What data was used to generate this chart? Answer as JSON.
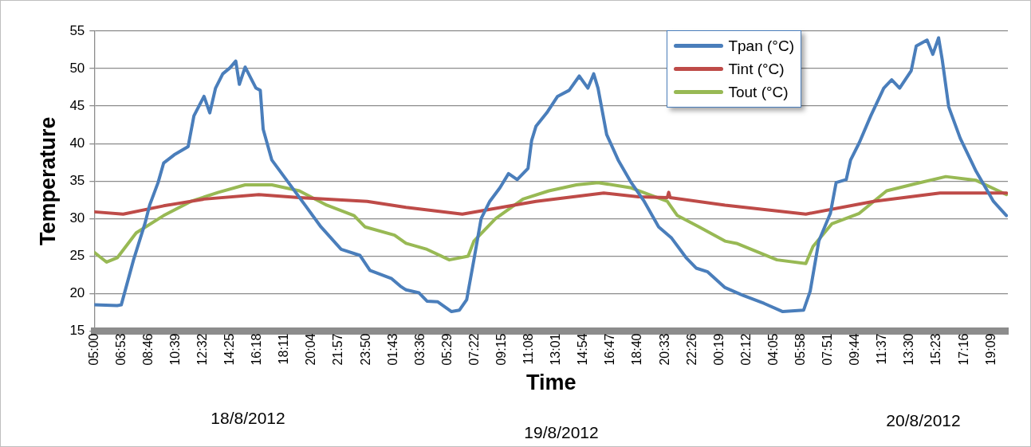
{
  "chart_data": {
    "type": "line",
    "xlabel": "Time",
    "ylabel": "Temperature",
    "annotations": [
      "18/8/2012",
      "19/8/2012",
      "20/8/2012"
    ],
    "xlim": [
      "2012-08-18T05:00",
      "2012-08-20T20:18"
    ],
    "xticks": [
      {
        "value": "2012-08-18T05:00",
        "label": "05:00"
      },
      {
        "value": "2012-08-18T06:53",
        "label": "06:53"
      },
      {
        "value": "2012-08-18T08:46",
        "label": "08:46"
      },
      {
        "value": "2012-08-18T10:39",
        "label": "10:39"
      },
      {
        "value": "2012-08-18T12:32",
        "label": "12:32"
      },
      {
        "value": "2012-08-18T14:25",
        "label": "14:25"
      },
      {
        "value": "2012-08-18T16:18",
        "label": "16:18"
      },
      {
        "value": "2012-08-18T18:11",
        "label": "18:11"
      },
      {
        "value": "2012-08-18T20:04",
        "label": "20:04"
      },
      {
        "value": "2012-08-18T21:57",
        "label": "21:57"
      },
      {
        "value": "2012-08-18T23:50",
        "label": "23:50"
      },
      {
        "value": "2012-08-19T01:43",
        "label": "01:43"
      },
      {
        "value": "2012-08-19T03:36",
        "label": "03:36"
      },
      {
        "value": "2012-08-19T05:29",
        "label": "05:29"
      },
      {
        "value": "2012-08-19T07:22",
        "label": "07:22"
      },
      {
        "value": "2012-08-19T09:15",
        "label": "09:15"
      },
      {
        "value": "2012-08-19T11:08",
        "label": "11:08"
      },
      {
        "value": "2012-08-19T13:01",
        "label": "13:01"
      },
      {
        "value": "2012-08-19T14:54",
        "label": "14:54"
      },
      {
        "value": "2012-08-19T16:47",
        "label": "16:47"
      },
      {
        "value": "2012-08-19T18:40",
        "label": "18:40"
      },
      {
        "value": "2012-08-19T20:33",
        "label": "20:33"
      },
      {
        "value": "2012-08-19T22:26",
        "label": "22:26"
      },
      {
        "value": "2012-08-20T00:19",
        "label": "00:19"
      },
      {
        "value": "2012-08-20T02:12",
        "label": "02:12"
      },
      {
        "value": "2012-08-20T04:05",
        "label": "04:05"
      },
      {
        "value": "2012-08-20T05:58",
        "label": "05:58"
      },
      {
        "value": "2012-08-20T07:51",
        "label": "07:51"
      },
      {
        "value": "2012-08-20T09:44",
        "label": "09:44"
      },
      {
        "value": "2012-08-20T11:37",
        "label": "11:37"
      },
      {
        "value": "2012-08-20T13:30",
        "label": "13:30"
      },
      {
        "value": "2012-08-20T15:23",
        "label": "15:23"
      },
      {
        "value": "2012-08-20T17:16",
        "label": "17:16"
      },
      {
        "value": "2012-08-20T19:09",
        "label": "19:09"
      }
    ],
    "ylim": [
      15,
      55
    ],
    "yticks": [
      15,
      20,
      25,
      30,
      35,
      40,
      45,
      50,
      55
    ],
    "grid": "y",
    "legend": "top right",
    "series": [
      {
        "name": "Tpan (°C)",
        "color": "#4a7ebb",
        "x": [
          "2012-08-18T05:00",
          "2012-08-18T06:35",
          "2012-08-18T06:52",
          "2012-08-18T07:43",
          "2012-08-18T08:30",
          "2012-08-18T08:50",
          "2012-08-18T09:25",
          "2012-08-18T09:48",
          "2012-08-18T10:32",
          "2012-08-18T11:30",
          "2012-08-18T11:54",
          "2012-08-18T12:36",
          "2012-08-18T13:00",
          "2012-08-18T13:24",
          "2012-08-18T13:54",
          "2012-08-18T14:24",
          "2012-08-18T14:48",
          "2012-08-18T15:03",
          "2012-08-18T15:27",
          "2012-08-18T16:12",
          "2012-08-18T16:30",
          "2012-08-18T16:42",
          "2012-08-18T17:18",
          "2012-08-18T18:27",
          "2012-08-18T19:36",
          "2012-08-18T20:42",
          "2012-08-18T22:06",
          "2012-08-18T23:24",
          "2012-08-19T00:06",
          "2012-08-19T01:36",
          "2012-08-19T02:12",
          "2012-08-19T02:36",
          "2012-08-19T03:30",
          "2012-08-19T04:03",
          "2012-08-19T04:48",
          "2012-08-19T05:45",
          "2012-08-19T06:18",
          "2012-08-19T06:48",
          "2012-08-19T07:18",
          "2012-08-19T07:48",
          "2012-08-19T08:24",
          "2012-08-19T09:06",
          "2012-08-19T09:42",
          "2012-08-19T10:18",
          "2012-08-19T11:03",
          "2012-08-19T11:18",
          "2012-08-19T11:36",
          "2012-08-19T12:21",
          "2012-08-19T13:06",
          "2012-08-19T13:54",
          "2012-08-19T14:36",
          "2012-08-19T15:12",
          "2012-08-19T15:36",
          "2012-08-19T15:54",
          "2012-08-19T16:30",
          "2012-08-19T17:18",
          "2012-08-19T18:12",
          "2012-08-19T19:06",
          "2012-08-19T20:06",
          "2012-08-19T21:00",
          "2012-08-19T22:00",
          "2012-08-19T22:42",
          "2012-08-19T23:30",
          "2012-08-20T00:42",
          "2012-08-20T01:54",
          "2012-08-20T03:24",
          "2012-08-20T04:42",
          "2012-08-20T06:09",
          "2012-08-20T06:36",
          "2012-08-20T07:12",
          "2012-08-20T08:00",
          "2012-08-20T08:24",
          "2012-08-20T09:06",
          "2012-08-20T09:24",
          "2012-08-20T10:00",
          "2012-08-20T10:48",
          "2012-08-20T11:42",
          "2012-08-20T12:15",
          "2012-08-20T12:48",
          "2012-08-20T13:36",
          "2012-08-20T13:57",
          "2012-08-20T14:42",
          "2012-08-20T15:06",
          "2012-08-20T15:30",
          "2012-08-20T15:45",
          "2012-08-20T16:12",
          "2012-08-20T17:00",
          "2012-08-20T18:06",
          "2012-08-20T19:18",
          "2012-08-20T20:12"
        ],
        "values": [
          18.5,
          18.4,
          18.5,
          24.5,
          29.3,
          31.8,
          34.8,
          37.4,
          38.5,
          39.6,
          43.7,
          46.3,
          44.1,
          47.4,
          49.3,
          50.1,
          51.0,
          47.9,
          50.2,
          47.4,
          47.1,
          41.9,
          37.8,
          34.8,
          31.8,
          28.9,
          25.9,
          25.1,
          23.1,
          22.0,
          21.0,
          20.5,
          20.1,
          19.0,
          18.9,
          17.6,
          17.8,
          19.2,
          24.5,
          30.0,
          32.3,
          34.1,
          36.0,
          35.2,
          36.7,
          40.4,
          42.3,
          44.1,
          46.3,
          47.1,
          49.0,
          47.4,
          49.3,
          47.4,
          41.2,
          37.8,
          34.8,
          32.3,
          28.9,
          27.4,
          24.8,
          23.4,
          22.9,
          20.8,
          19.8,
          18.7,
          17.6,
          17.8,
          20.3,
          27.0,
          30.7,
          34.8,
          35.2,
          37.8,
          40.1,
          43.7,
          47.4,
          48.5,
          47.4,
          49.7,
          53.0,
          53.8,
          51.9,
          54.1,
          51.2,
          44.9,
          40.7,
          36.3,
          32.3,
          30.4
        ]
      },
      {
        "name": "Tint (°C)",
        "color": "#be4b48",
        "x": [
          "2012-08-18T05:00",
          "2012-08-18T07:00",
          "2012-08-18T09:48",
          "2012-08-18T12:36",
          "2012-08-18T16:24",
          "2012-08-18T19:12",
          "2012-08-18T23:54",
          "2012-08-19T02:36",
          "2012-08-19T06:30",
          "2012-08-19T11:36",
          "2012-08-19T16:18",
          "2012-08-19T18:42",
          "2012-08-19T20:42",
          "2012-08-19T20:48",
          "2012-08-19T20:54",
          "2012-08-20T00:42",
          "2012-08-20T06:18",
          "2012-08-20T11:00",
          "2012-08-20T15:36",
          "2012-08-20T20:12"
        ],
        "values": [
          30.9,
          30.6,
          31.7,
          32.6,
          33.2,
          32.8,
          32.3,
          31.5,
          30.6,
          32.3,
          33.4,
          32.9,
          32.8,
          33.5,
          32.8,
          31.8,
          30.6,
          32.3,
          33.4,
          33.4
        ]
      },
      {
        "name": "Tout (°C)",
        "color": "#98b954",
        "x": [
          "2012-08-18T05:00",
          "2012-08-18T05:51",
          "2012-08-18T06:36",
          "2012-08-18T07:54",
          "2012-08-18T09:48",
          "2012-08-18T11:42",
          "2012-08-18T13:36",
          "2012-08-18T15:27",
          "2012-08-18T17:18",
          "2012-08-18T19:12",
          "2012-08-18T21:06",
          "2012-08-18T23:00",
          "2012-08-18T23:45",
          "2012-08-19T01:48",
          "2012-08-19T02:36",
          "2012-08-19T04:03",
          "2012-08-19T05:36",
          "2012-08-19T06:54",
          "2012-08-19T07:18",
          "2012-08-19T08:48",
          "2012-08-19T10:42",
          "2012-08-19T12:30",
          "2012-08-19T14:24",
          "2012-08-19T15:54",
          "2012-08-19T18:12",
          "2012-08-19T20:42",
          "2012-08-19T21:24",
          "2012-08-19T22:54",
          "2012-08-20T00:42",
          "2012-08-20T01:30",
          "2012-08-20T04:18",
          "2012-08-20T06:18",
          "2012-08-20T06:48",
          "2012-08-20T08:06",
          "2012-08-20T10:00",
          "2012-08-20T11:54",
          "2012-08-20T13:48",
          "2012-08-20T16:00",
          "2012-08-20T18:06",
          "2012-08-20T20:12"
        ],
        "values": [
          25.5,
          24.2,
          24.8,
          28.1,
          30.4,
          32.3,
          33.5,
          34.5,
          34.5,
          33.7,
          31.8,
          30.4,
          28.9,
          27.8,
          26.7,
          25.9,
          24.5,
          25.0,
          27.0,
          30.0,
          32.6,
          33.7,
          34.5,
          34.8,
          34.1,
          32.3,
          30.4,
          28.9,
          27.0,
          26.7,
          24.5,
          24.0,
          26.3,
          29.3,
          30.7,
          33.7,
          34.6,
          35.6,
          35.1,
          33.2
        ]
      }
    ]
  }
}
